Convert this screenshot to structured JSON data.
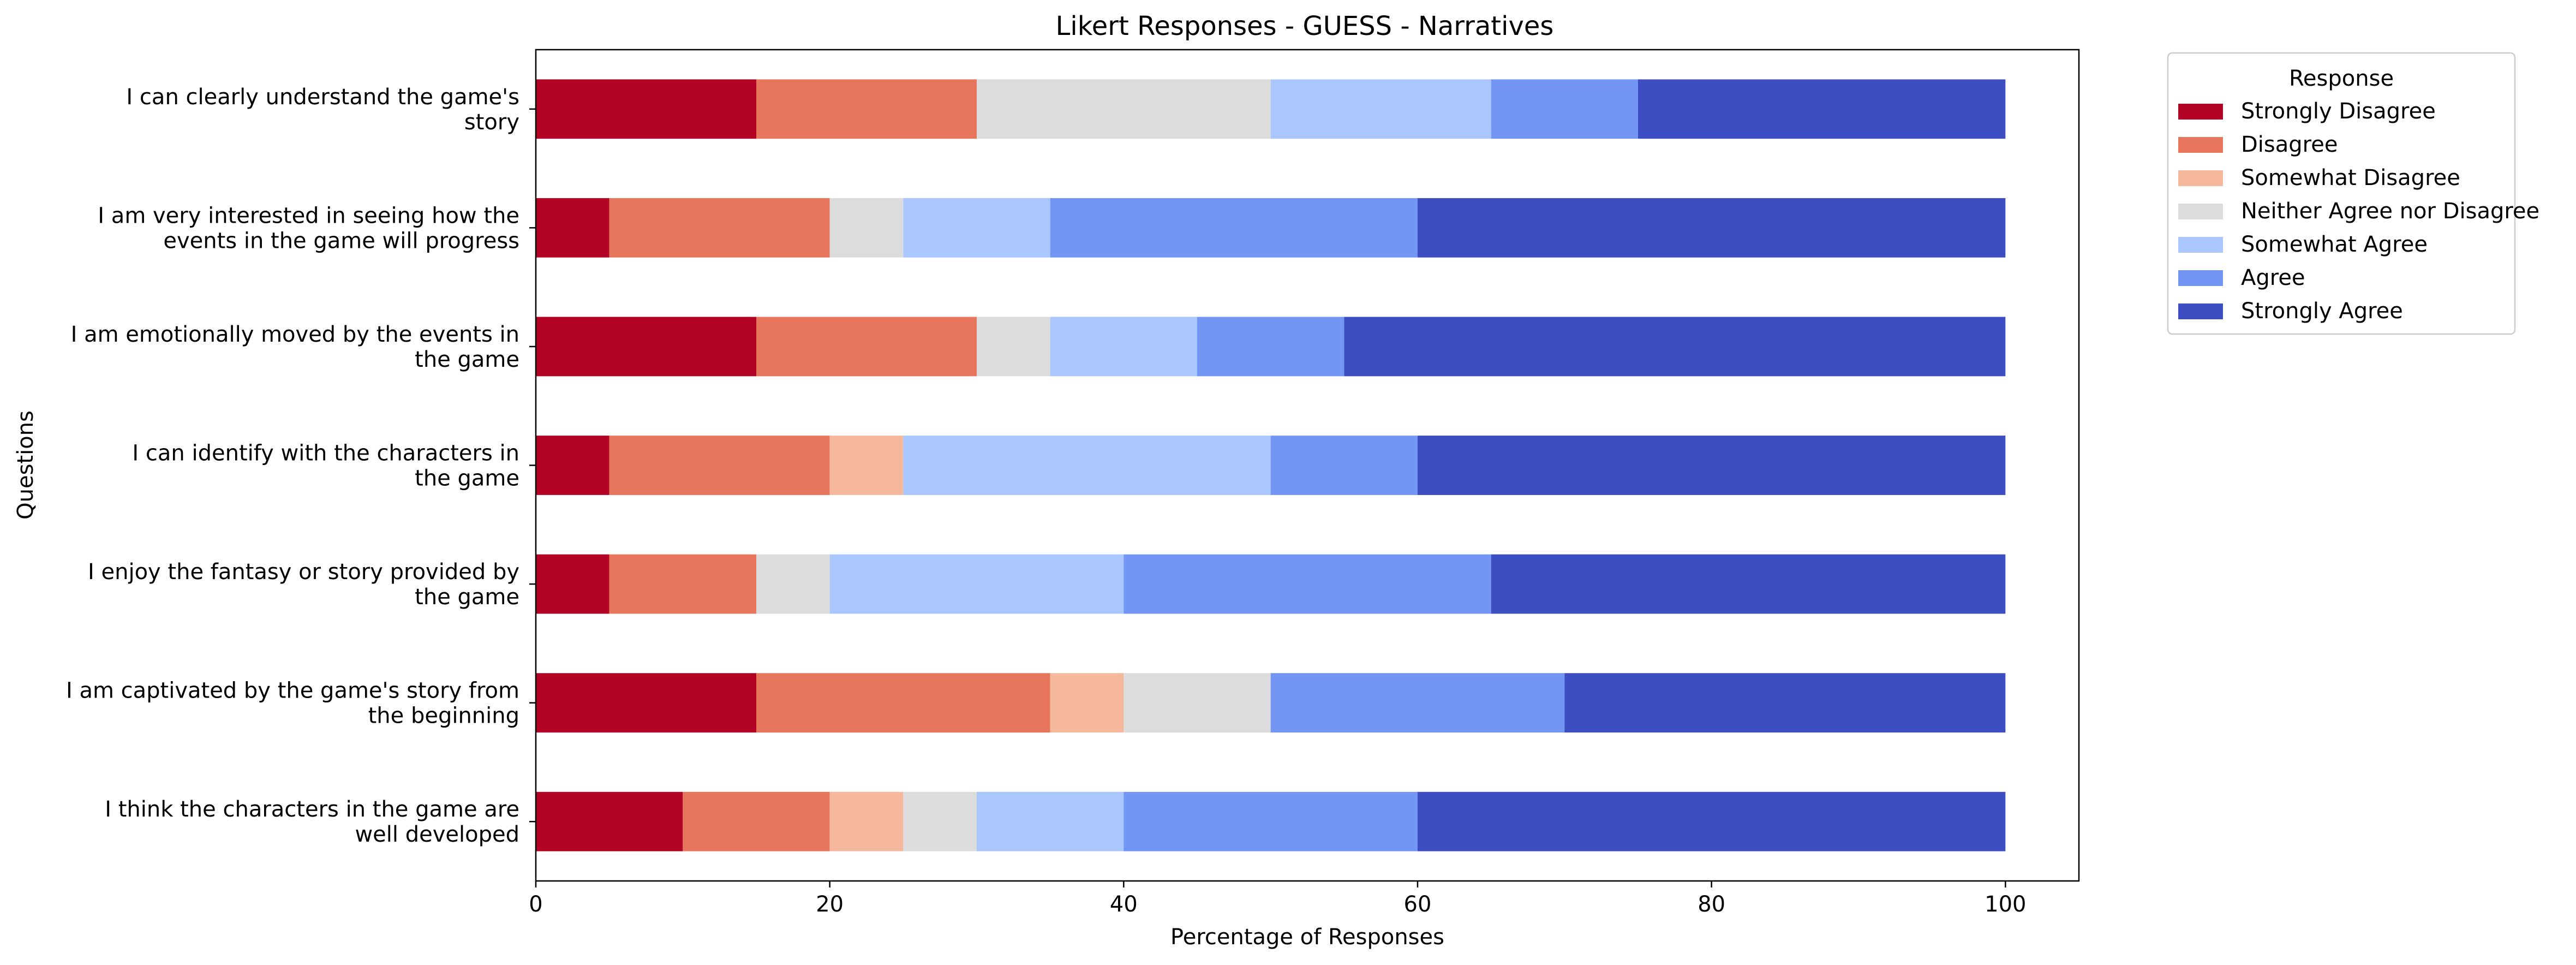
{
  "chart_data": {
    "type": "bar",
    "orientation": "horizontal",
    "stacked": true,
    "title": "Likert Responses - GUESS - Narratives",
    "xlabel": "Percentage of Responses",
    "ylabel": "Questions",
    "xlim": [
      0,
      105
    ],
    "xticks": [
      0,
      20,
      40,
      60,
      80,
      100
    ],
    "grid": false,
    "legend": {
      "title": "Response",
      "placement": "outside top-right"
    },
    "categories": [
      [
        "I can clearly understand the game's",
        "story"
      ],
      [
        "I am very interested in seeing how the",
        "events in the game will progress"
      ],
      [
        "I am emotionally moved by the events in",
        "the game"
      ],
      [
        "I can identify with the characters in",
        "the game"
      ],
      [
        "I enjoy the fantasy or story provided by",
        "the game"
      ],
      [
        "I am captivated by the game's story from",
        "the beginning"
      ],
      [
        "I think the characters in the game are",
        "well developed"
      ]
    ],
    "series": [
      {
        "name": "Strongly Disagree",
        "color": "#b40426",
        "values": [
          15,
          5,
          15,
          5,
          5,
          15,
          10
        ]
      },
      {
        "name": "Disagree",
        "color": "#e8765c",
        "values": [
          15,
          15,
          15,
          15,
          10,
          20,
          10
        ]
      },
      {
        "name": "Somewhat Disagree",
        "color": "#f6b89c",
        "values": [
          0,
          0,
          0,
          5,
          0,
          5,
          5
        ]
      },
      {
        "name": "Neither Agree nor Disagree",
        "color": "#dddcdc",
        "values": [
          20,
          5,
          5,
          0,
          5,
          10,
          5
        ]
      },
      {
        "name": "Somewhat Agree",
        "color": "#aac7fd",
        "values": [
          15,
          10,
          10,
          25,
          20,
          0,
          10
        ]
      },
      {
        "name": "Agree",
        "color": "#7396f5",
        "values": [
          10,
          25,
          10,
          10,
          25,
          20,
          20
        ]
      },
      {
        "name": "Strongly Agree",
        "color": "#3c4ec2",
        "values": [
          25,
          40,
          45,
          40,
          35,
          30,
          40
        ]
      }
    ]
  }
}
